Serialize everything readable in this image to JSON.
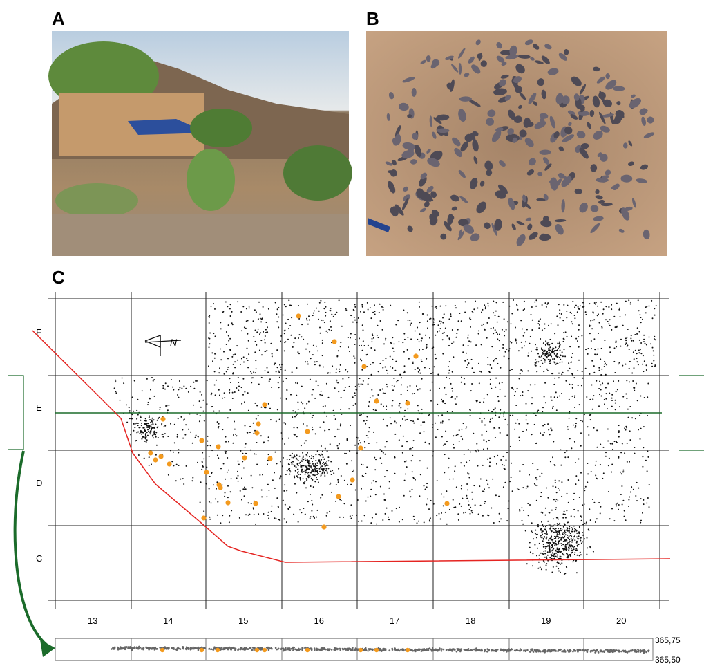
{
  "panels": {
    "a": {
      "label": "A"
    },
    "b": {
      "label": "B"
    },
    "c": {
      "label": "C",
      "north": "N",
      "rows": [
        "F",
        "E",
        "D",
        "C"
      ],
      "columns": [
        "13",
        "14",
        "15",
        "16",
        "17",
        "18",
        "19",
        "20"
      ],
      "section": {
        "top": "365,75",
        "bottom": "365,50"
      }
    }
  }
}
